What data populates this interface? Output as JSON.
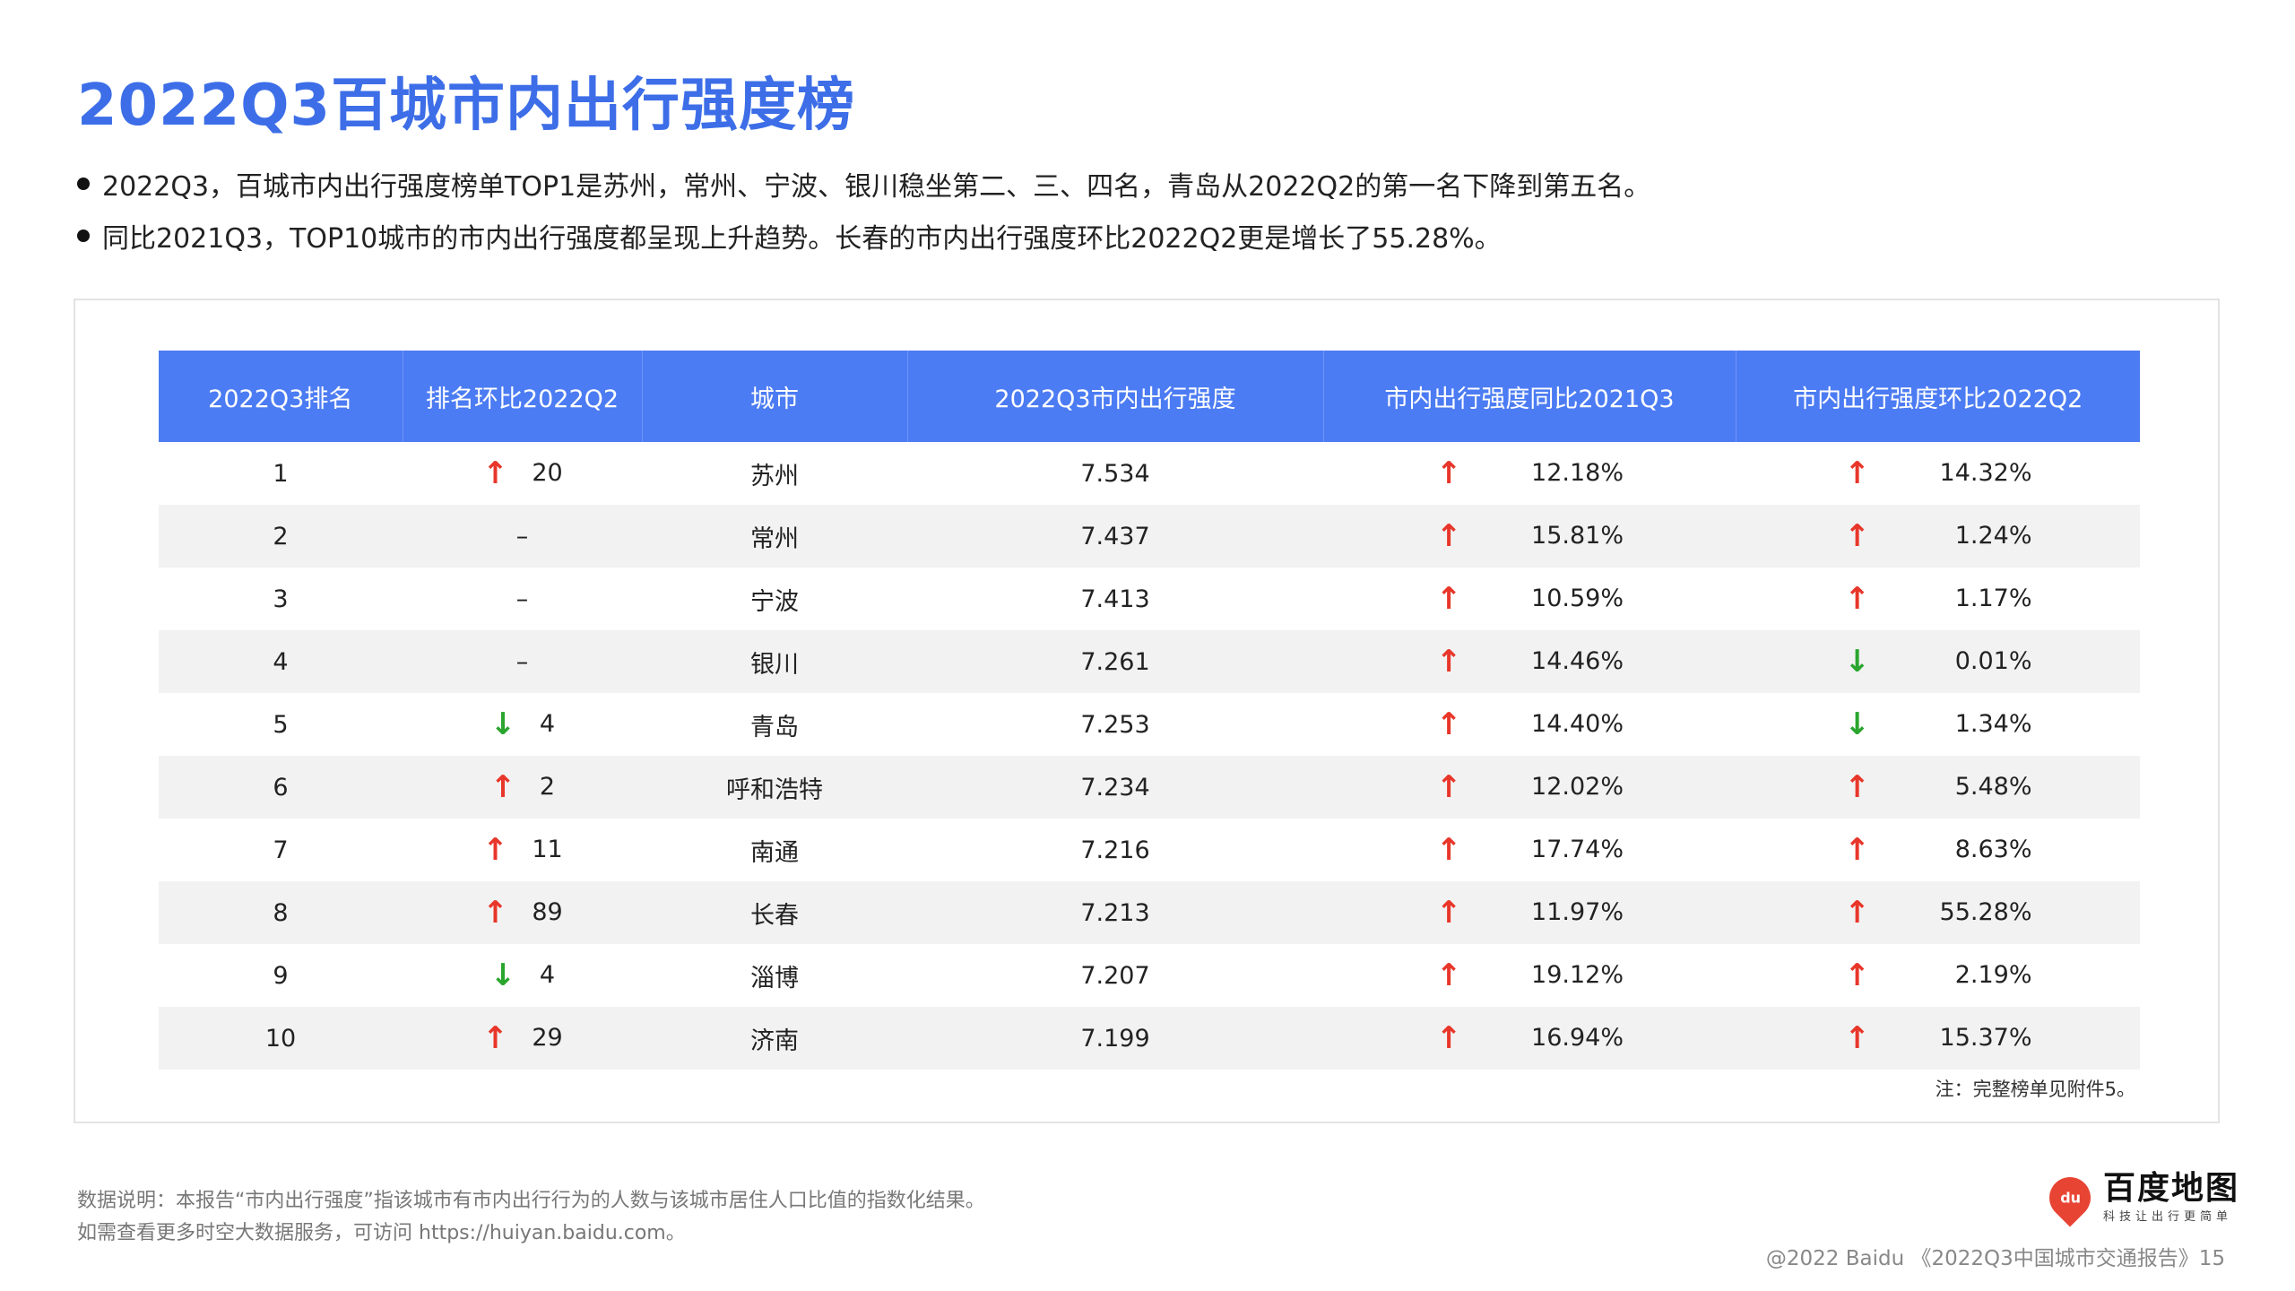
{
  "title": "2022Q3百城市内出行强度榜",
  "bullets": [
    "2022Q3，百城市内出行强度榜单TOP1是苏州，常州、宁波、银川稳坐第二、三、四名，青岛从2022Q2的第一名下降到第五名。",
    "同比2021Q3，TOP10城市的市内出行强度都呈现上升趋势。长春的市内出行强度环比2022Q2更是增长了55.28%。"
  ],
  "table": {
    "headers": [
      "2022Q3排名",
      "排名环比2022Q2",
      "城市",
      "2022Q3市内出行强度",
      "市内出行强度同比2021Q3",
      "市内出行强度环比2022Q2"
    ],
    "rows": [
      {
        "rank": "1",
        "chg_dir": "up",
        "chg": "20",
        "city": "苏州",
        "intensity": "7.534",
        "yoy_dir": "up",
        "yoy": "12.18%",
        "qoq_dir": "up",
        "qoq": "14.32%"
      },
      {
        "rank": "2",
        "chg_dir": "none",
        "chg": "–",
        "city": "常州",
        "intensity": "7.437",
        "yoy_dir": "up",
        "yoy": "15.81%",
        "qoq_dir": "up",
        "qoq": "1.24%"
      },
      {
        "rank": "3",
        "chg_dir": "none",
        "chg": "–",
        "city": "宁波",
        "intensity": "7.413",
        "yoy_dir": "up",
        "yoy": "10.59%",
        "qoq_dir": "up",
        "qoq": "1.17%"
      },
      {
        "rank": "4",
        "chg_dir": "none",
        "chg": "–",
        "city": "银川",
        "intensity": "7.261",
        "yoy_dir": "up",
        "yoy": "14.46%",
        "qoq_dir": "down",
        "qoq": "0.01%"
      },
      {
        "rank": "5",
        "chg_dir": "down",
        "chg": "4",
        "city": "青岛",
        "intensity": "7.253",
        "yoy_dir": "up",
        "yoy": "14.40%",
        "qoq_dir": "down",
        "qoq": "1.34%"
      },
      {
        "rank": "6",
        "chg_dir": "up",
        "chg": "2",
        "city": "呼和浩特",
        "intensity": "7.234",
        "yoy_dir": "up",
        "yoy": "12.02%",
        "qoq_dir": "up",
        "qoq": "5.48%"
      },
      {
        "rank": "7",
        "chg_dir": "up",
        "chg": "11",
        "city": "南通",
        "intensity": "7.216",
        "yoy_dir": "up",
        "yoy": "17.74%",
        "qoq_dir": "up",
        "qoq": "8.63%"
      },
      {
        "rank": "8",
        "chg_dir": "up",
        "chg": "89",
        "city": "长春",
        "intensity": "7.213",
        "yoy_dir": "up",
        "yoy": "11.97%",
        "qoq_dir": "up",
        "qoq": "55.28%"
      },
      {
        "rank": "9",
        "chg_dir": "down",
        "chg": "4",
        "city": "淄博",
        "intensity": "7.207",
        "yoy_dir": "up",
        "yoy": "19.12%",
        "qoq_dir": "up",
        "qoq": "2.19%"
      },
      {
        "rank": "10",
        "chg_dir": "up",
        "chg": "29",
        "city": "济南",
        "intensity": "7.199",
        "yoy_dir": "up",
        "yoy": "16.94%",
        "qoq_dir": "up",
        "qoq": "15.37%"
      }
    ]
  },
  "arrows": {
    "up": "↑",
    "down": "↓",
    "up_color": "#e8362a",
    "down_color": "#2aa52e"
  },
  "note": "注：完整榜单见附件5。",
  "footnotes": [
    "数据说明：本报告“市内出行强度”指该城市有市内出行行为的人数与该城市居住人口比值的指数化结果。",
    "如需查看更多时空大数据服务，可访问 https://huiyan.baidu.com。"
  ],
  "logo": {
    "icon_text": "du",
    "name": "百度地图",
    "slogan": "科技让出行更简单"
  },
  "copyright": "@2022 Baidu 《2022Q3中国城市交通报告》15",
  "accent_color": "#4c7cf3",
  "title_color": "#3d6ee8"
}
